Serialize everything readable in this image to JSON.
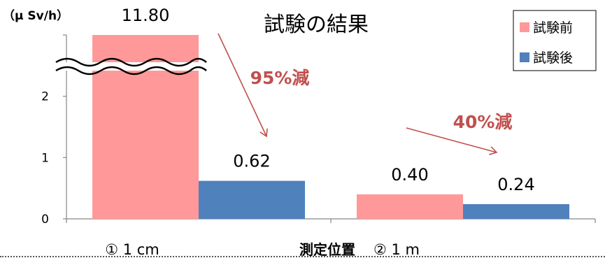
{
  "chart_data": {
    "type": "bar",
    "title": "試験の結果",
    "unit_label": "（μ Sv/h）",
    "xlabel": "測定位置",
    "categories": [
      "① 1 cm",
      "② 1 m"
    ],
    "series": [
      {
        "name": "試験前",
        "color": "#ff9999",
        "values": [
          11.8,
          0.4
        ],
        "labels": [
          "11.80",
          "0.40"
        ]
      },
      {
        "name": "試験後",
        "color": "#4f81bd",
        "values": [
          0.62,
          0.24
        ],
        "labels": [
          "0.62",
          "0.24"
        ]
      }
    ],
    "ylim": [
      0,
      3
    ],
    "yticks": [
      0,
      1,
      2
    ],
    "axis_break": true,
    "legend_position": "top-right",
    "annotations": [
      {
        "text": "95%減",
        "color": "#c0504d"
      },
      {
        "text": "40%減",
        "color": "#c0504d"
      }
    ]
  }
}
